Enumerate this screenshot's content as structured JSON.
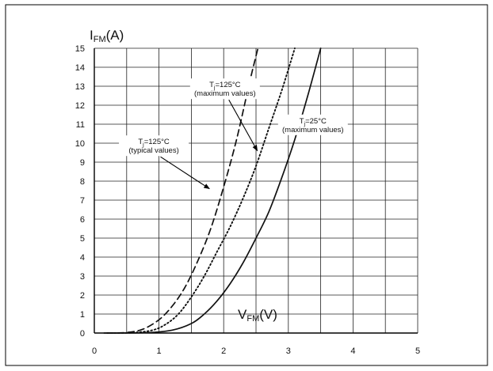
{
  "chart_data": {
    "type": "line",
    "title": "",
    "xlabel": {
      "main": "V",
      "sub": "FM",
      "unit": "(V)"
    },
    "ylabel": {
      "main": "I",
      "sub": "FM",
      "unit": "(A)"
    },
    "xlim": [
      0,
      5
    ],
    "ylim": [
      0,
      15
    ],
    "x_ticks": [
      "0",
      "1",
      "2",
      "3",
      "4",
      "5"
    ],
    "y_ticks": [
      "0",
      "1",
      "2",
      "3",
      "4",
      "5",
      "6",
      "7",
      "8",
      "9",
      "10",
      "11",
      "12",
      "13",
      "14",
      "15"
    ],
    "grid": true,
    "series": [
      {
        "style": "dashed",
        "points": [
          [
            0.2,
            0
          ],
          [
            0.5,
            0.03
          ],
          [
            0.75,
            0.2
          ],
          [
            1.0,
            0.7
          ],
          [
            1.2,
            1.4
          ],
          [
            1.4,
            2.4
          ],
          [
            1.6,
            3.8
          ],
          [
            1.8,
            5.5
          ],
          [
            2.0,
            7.7
          ],
          [
            2.2,
            10.2
          ],
          [
            2.4,
            13.2
          ],
          [
            2.53,
            15
          ]
        ]
      },
      {
        "style": "dotted",
        "points": [
          [
            0.2,
            0
          ],
          [
            0.6,
            0.02
          ],
          [
            0.9,
            0.15
          ],
          [
            1.1,
            0.45
          ],
          [
            1.3,
            1.0
          ],
          [
            1.5,
            1.9
          ],
          [
            1.7,
            3.0
          ],
          [
            1.9,
            4.3
          ],
          [
            2.1,
            5.6
          ],
          [
            2.3,
            7.1
          ],
          [
            2.5,
            8.8
          ],
          [
            2.7,
            10.8
          ],
          [
            2.9,
            12.8
          ],
          [
            3.1,
            15
          ]
        ]
      },
      {
        "style": "solid",
        "points": [
          [
            0.15,
            0
          ],
          [
            0.8,
            0.02
          ],
          [
            1.2,
            0.15
          ],
          [
            1.5,
            0.5
          ],
          [
            1.7,
            1.0
          ],
          [
            1.9,
            1.7
          ],
          [
            2.1,
            2.6
          ],
          [
            2.3,
            3.7
          ],
          [
            2.5,
            5.0
          ],
          [
            2.7,
            6.4
          ],
          [
            2.9,
            8.2
          ],
          [
            3.1,
            10.2
          ],
          [
            3.3,
            12.5
          ],
          [
            3.5,
            15
          ]
        ]
      }
    ],
    "annotations": [
      {
        "lines": [
          "T_j=125°C",
          "(maximum values)"
        ],
        "sub": "j",
        "pos": [
          2.02,
          12.95
        ],
        "arrow_to": [
          2.52,
          9.6
        ]
      },
      {
        "lines": [
          "T_j=125°C",
          "(typical values)"
        ],
        "sub": "j",
        "pos": [
          0.92,
          9.95
        ],
        "arrow_to": [
          1.78,
          7.6
        ]
      },
      {
        "lines": [
          "T_j=25°C",
          "(maximum values)"
        ],
        "sub": "j",
        "pos": [
          3.38,
          11.05
        ],
        "arrow_to": null
      }
    ],
    "colors": {
      "line": "#111111",
      "grid": "#222222",
      "frame": "#000000"
    }
  }
}
